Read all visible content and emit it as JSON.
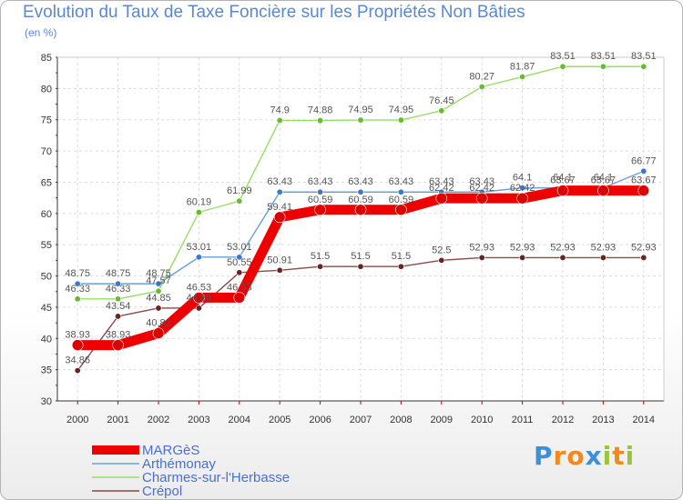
{
  "title": "Evolution du Taux de Taxe Foncière sur les Propriétés Non Bâties",
  "subtitle": "(en %)",
  "chart_data": {
    "type": "line",
    "title": "Evolution du Taux de Taxe Foncière sur les Propriétés Non Bâties",
    "ylabel": "(en %)",
    "xlabel": "",
    "x": [
      "2000",
      "2001",
      "2002",
      "2003",
      "2004",
      "2005",
      "2006",
      "2007",
      "2008",
      "2009",
      "2010",
      "2011",
      "2012",
      "2013",
      "2014"
    ],
    "ylim": [
      30,
      85
    ],
    "yticks": [
      30,
      35,
      40,
      45,
      50,
      55,
      60,
      65,
      70,
      75,
      80,
      85
    ],
    "series": [
      {
        "name": "Arthémonay",
        "color": "#6aa0d8",
        "marker": "#3a78c8",
        "values": [
          48.75,
          48.75,
          48.75,
          53.01,
          53.01,
          63.43,
          63.43,
          63.43,
          63.43,
          63.43,
          63.43,
          64.1,
          64.1,
          64.1,
          66.77
        ],
        "labels": [
          "48.75",
          "48.75",
          "48.75",
          "53.01",
          "53.01",
          "63.43",
          "63.43",
          "63.43",
          "63.43",
          "63.43",
          "63.43",
          "64.1",
          "64.1",
          "64.1",
          "66.77"
        ]
      },
      {
        "name": "Charmes-sur-l'Herbasse",
        "color": "#99dd66",
        "marker": "#66bb33",
        "values": [
          46.33,
          46.33,
          47.57,
          60.19,
          61.99,
          74.9,
          74.88,
          74.95,
          74.95,
          76.45,
          80.27,
          81.87,
          83.51,
          83.51,
          83.51
        ],
        "labels": [
          "46.33",
          "46.33",
          "47.57",
          "60.19",
          "61.99",
          "74.9",
          "74.88",
          "74.95",
          "74.95",
          "76.45",
          "80.27",
          "81.87",
          "83.51",
          "83.51",
          "83.51"
        ]
      },
      {
        "name": "Crépol",
        "color": "#8a4a4a",
        "marker": "#6a2222",
        "values": [
          34.86,
          43.54,
          44.85,
          44.85,
          50.55,
          50.91,
          51.5,
          51.5,
          51.5,
          52.5,
          52.93,
          52.93,
          52.93,
          52.93,
          52.93
        ],
        "labels": [
          "34.86",
          "43.54",
          "44.85",
          "44.85",
          "50.55",
          "50.91",
          "51.5",
          "51.5",
          "51.5",
          "52.5",
          "52.93",
          "52.93",
          "52.93",
          "52.93",
          "52.93"
        ]
      },
      {
        "name": "MARGèS",
        "color": "#ee0000",
        "marker": "#dd0000",
        "values": [
          38.93,
          38.93,
          40.82,
          46.53,
          46.53,
          59.41,
          60.59,
          60.59,
          60.59,
          62.42,
          62.42,
          62.42,
          63.67,
          63.67,
          63.67
        ],
        "labels": [
          "38.93",
          "38.93",
          "40.82",
          "46.53",
          "46.53",
          "59.41",
          "60.59",
          "60.59",
          "60.59",
          "62.42",
          "62.42",
          "62.42",
          "63.67",
          "63.67",
          "63.67"
        ]
      }
    ],
    "legend": [
      "MARGèS",
      "Arthémonay",
      "Charmes-sur-l'Herbasse",
      "Crépol"
    ],
    "legend_position": "bottom-left",
    "grid": true
  },
  "logo": {
    "text": "Proxiti",
    "letters": [
      "P",
      "r",
      "o",
      "x",
      "i",
      "t",
      "i"
    ],
    "colors": [
      "#3f8fd6",
      "#f08a1c",
      "#f08a1c",
      "#3f8fd6",
      "#9ac43c",
      "#f08a1c",
      "#9ac43c"
    ]
  }
}
